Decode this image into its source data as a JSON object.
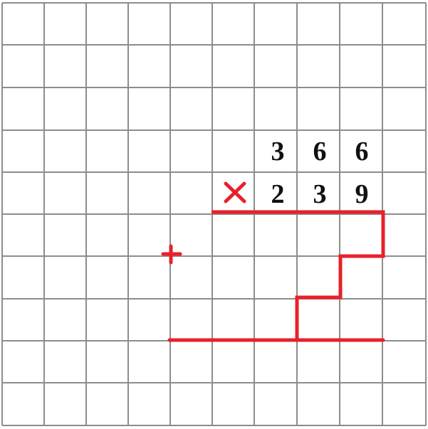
{
  "grid": {
    "line_color": "#8c8c8c",
    "background": "#ffffff"
  },
  "accent_color": "#e8202a",
  "text_color": "#111111",
  "multiplicand": [
    "3",
    "6",
    "6"
  ],
  "multiplier": [
    "2",
    "3",
    "9"
  ],
  "operators": {
    "times": "×",
    "plus": "+"
  }
}
